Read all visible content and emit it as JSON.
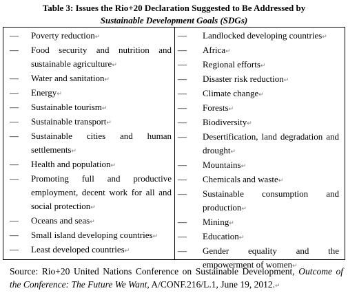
{
  "title": {
    "line1": "Table 3: Issues the Rio+20 Declaration Suggested to Be Addressed by",
    "line2": "Sustainable Development Goals (SDGs)"
  },
  "table": {
    "marker": "—",
    "left": [
      "Poverty reduction",
      "Food security and nutrition and sustainable agriculture",
      "Water and sanitation",
      "Energy",
      "Sustainable tourism",
      "Sustainable transport",
      "Sustainable cities and human settlements",
      "Health and population",
      "Promoting full and productive employment, decent work for all and social protection",
      "Oceans and seas",
      "Small island developing countries",
      "Least developed countries"
    ],
    "right": [
      "Landlocked developing countries",
      "Africa",
      "Regional efforts",
      "Disaster risk reduction",
      "Climate change",
      "Forests",
      "Biodiversity",
      "Desertification, land degradation and drought",
      "Mountains",
      "Chemicals and waste",
      "Sustainable consumption and production",
      "Mining",
      "Education",
      "Gender equality and the empowerment of women"
    ]
  },
  "source": {
    "prefix": "Source: Rio+20 United Nations Conference on Sustainable Development, ",
    "title": "Outcome of the Conference: The Future We Want",
    "suffix": ", A/CONF.216/L.1, June 19, 2012."
  }
}
